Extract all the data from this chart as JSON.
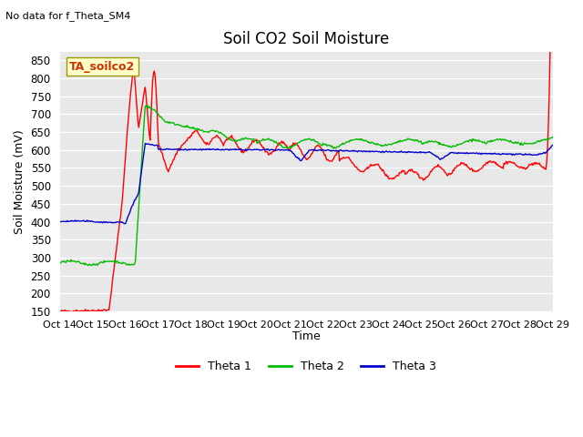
{
  "title": "Soil CO2 Soil Moisture",
  "subtitle": "No data for f_Theta_SM4",
  "ylabel": "Soil Moisture (mV)",
  "xlabel": "Time",
  "annotation": "TA_soilco2",
  "ylim": [
    150,
    875
  ],
  "yticks": [
    150,
    200,
    250,
    300,
    350,
    400,
    450,
    500,
    550,
    600,
    650,
    700,
    750,
    800,
    850
  ],
  "xtick_labels": [
    "Oct 14",
    "Oct 15",
    "Oct 16",
    "Oct 17",
    "Oct 18",
    "Oct 19",
    "Oct 20",
    "Oct 21",
    "Oct 22",
    "Oct 23",
    "Oct 24",
    "Oct 25",
    "Oct 26",
    "Oct 27",
    "Oct 28",
    "Oct 29"
  ],
  "bg_color": "#e8e8e8",
  "plot_bg_color": "#e8e8e8",
  "fig_bg_color": "#ffffff",
  "grid_color": "#ffffff",
  "line_colors": {
    "theta1": "#ff0000",
    "theta2": "#00bb00",
    "theta3": "#0000cc"
  },
  "legend_labels": [
    "Theta 1",
    "Theta 2",
    "Theta 3"
  ]
}
